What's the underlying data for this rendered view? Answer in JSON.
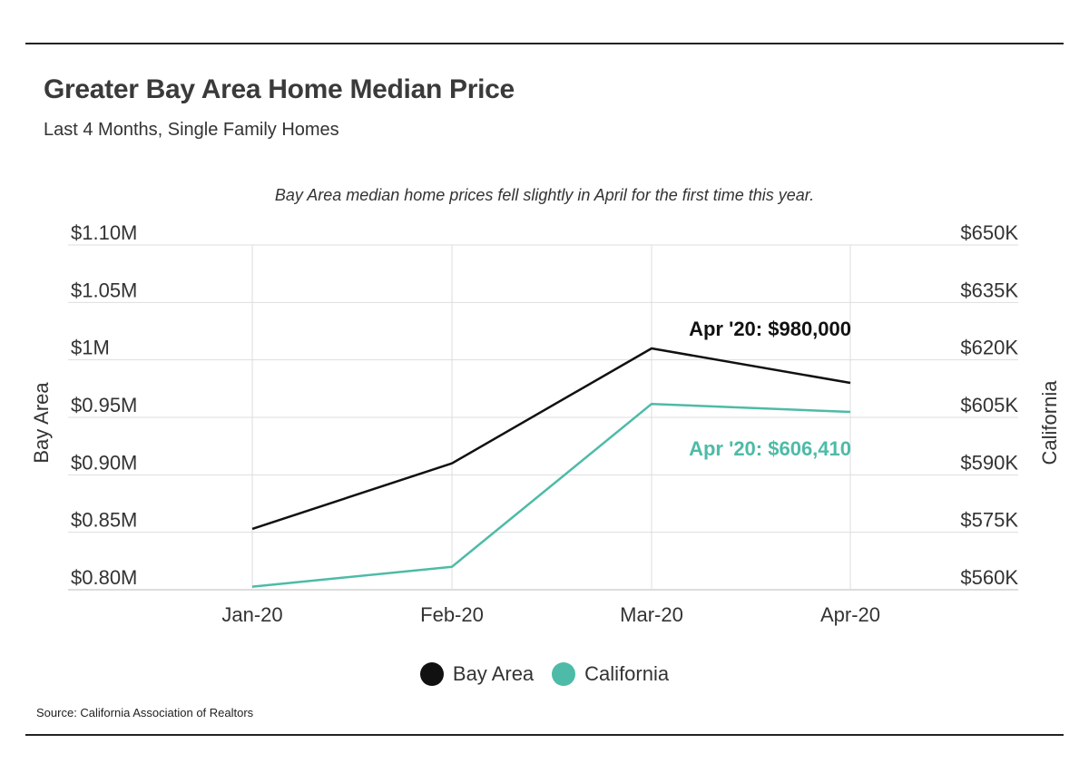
{
  "header": {
    "title": "Greater Bay Area Home Median Price",
    "subtitle": "Last 4 Months, Single Family Homes"
  },
  "source": "Source:  California Association of Realtors",
  "colors": {
    "bay_area": "#111111",
    "california": "#4dbba7",
    "grid": "#dddddd"
  },
  "chart_data": {
    "type": "line",
    "annotation_top": "Bay Area median home prices fell slightly in April for the first time this year.",
    "categories": [
      "Jan-20",
      "Feb-20",
      "Mar-20",
      "Apr-20"
    ],
    "left_axis": {
      "label": "Bay Area",
      "range": [
        800000,
        1100000
      ],
      "ticks": [
        800000,
        850000,
        900000,
        950000,
        1000000,
        1050000,
        1100000
      ],
      "tick_labels": [
        "$0.80M",
        "$0.85M",
        "$0.90M",
        "$0.95M",
        "$1M",
        "$1.05M",
        "$1.10M"
      ]
    },
    "right_axis": {
      "label": "California",
      "range": [
        560000,
        650000
      ],
      "ticks": [
        560000,
        575000,
        590000,
        605000,
        620000,
        635000,
        650000
      ],
      "tick_labels": [
        "$560K",
        "$575K",
        "$590K",
        "$605K",
        "$620K",
        "$635K",
        "$650K"
      ]
    },
    "series": [
      {
        "name": "Bay Area",
        "axis": "left",
        "color": "#111111",
        "values": [
          853000,
          910000,
          1010000,
          980000
        ],
        "end_label": "Apr '20: $980,000"
      },
      {
        "name": "California",
        "axis": "right",
        "color": "#4dbba7",
        "values": [
          560800,
          566000,
          608500,
          606410
        ],
        "end_label": "Apr '20: $606,410"
      }
    ],
    "legend": {
      "position": "bottom-center"
    },
    "grid": true
  }
}
